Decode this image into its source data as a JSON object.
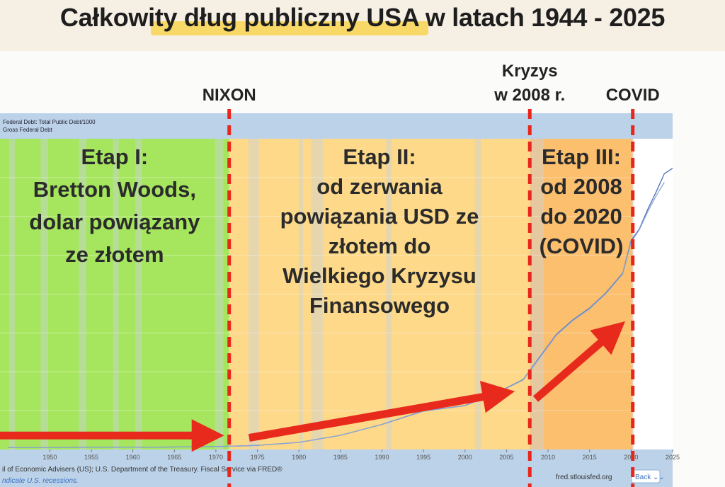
{
  "page": {
    "title": "Całkowity dług publiczny USA w latach 1944 - 2025"
  },
  "chart_data": {
    "type": "line",
    "series": [
      {
        "name": "Federal Debt: Total Public Debt/1000",
        "color": "#4a6fb8",
        "x": [
          1945,
          1950,
          1955,
          1960,
          1965,
          1970,
          1972,
          1975,
          1980,
          1985,
          1990,
          1995,
          2000,
          2004,
          2007,
          2009,
          2011,
          2013,
          2015,
          2017,
          2019,
          2020,
          2021,
          2022,
          2023,
          2024,
          2025
        ],
        "values": [
          0.26,
          0.26,
          0.28,
          0.29,
          0.32,
          0.38,
          0.43,
          0.53,
          0.91,
          1.82,
          3.23,
          4.97,
          5.66,
          7.38,
          9.0,
          11.9,
          14.8,
          16.7,
          18.2,
          20.2,
          22.7,
          26.9,
          28.4,
          30.9,
          33.1,
          35.5,
          36.2
        ]
      },
      {
        "name": "Gross Federal Debt",
        "color": "#8ea7d6",
        "x": [
          1945,
          1950,
          1955,
          1960,
          1965,
          1970,
          1972,
          1975,
          1980,
          1985,
          1990,
          1995,
          2000,
          2004,
          2007,
          2009,
          2011,
          2013,
          2015,
          2017,
          2019,
          2020,
          2021,
          2022,
          2023,
          2024
        ],
        "values": [
          0.26,
          0.26,
          0.27,
          0.29,
          0.32,
          0.38,
          0.43,
          0.54,
          0.91,
          1.82,
          3.21,
          4.92,
          5.63,
          7.35,
          8.95,
          11.8,
          14.7,
          16.6,
          18.1,
          20.1,
          22.6,
          26.7,
          28.3,
          30.6,
          32.6,
          34.4
        ]
      }
    ],
    "x_ticks": [
      "1950",
      "1955",
      "1960",
      "1965",
      "1970",
      "1975",
      "1980",
      "1985",
      "1990",
      "1995",
      "2000",
      "2005",
      "2010",
      "2015",
      "2020",
      "2025"
    ],
    "xlim": [
      1944,
      2025
    ],
    "ylim": [
      0,
      40
    ],
    "grid": true,
    "recession_periods": [
      [
        1945.1,
        1945.8
      ],
      [
        1948.9,
        1949.8
      ],
      [
        1953.5,
        1954.4
      ],
      [
        1957.6,
        1958.3
      ],
      [
        1960.3,
        1961.1
      ],
      [
        1969.9,
        1970.9
      ],
      [
        1973.9,
        1975.2
      ],
      [
        1980.0,
        1980.5
      ],
      [
        1981.5,
        1982.9
      ],
      [
        1990.5,
        1991.2
      ],
      [
        2001.2,
        2001.9
      ],
      [
        2007.9,
        2009.5
      ],
      [
        2020.1,
        2020.3
      ]
    ],
    "phases": [
      {
        "from": 1944,
        "to": 1971.6,
        "color": "#a6e65e",
        "lines": [
          "Etap I:",
          "Bretton Woods,",
          "dolar powiązany",
          "ze złotem"
        ]
      },
      {
        "from": 1971.6,
        "to": 2007.8,
        "color": "#fdd989",
        "lines": [
          "Etap II:",
          "od zerwania",
          "powiązania USD ze",
          "złotem do",
          "Wielkiego Kryzysu",
          "Finansowego"
        ]
      },
      {
        "from": 2007.8,
        "to": 2020.2,
        "color": "#fbbf6e",
        "lines": [
          "Etap III:",
          "od 2008",
          "do 2020",
          "(COVID)"
        ]
      }
    ],
    "markers": [
      {
        "x": 1971.6,
        "lines": [
          "NIXON"
        ]
      },
      {
        "x": 2007.8,
        "lines": [
          "Kryzys",
          "w 2008 r."
        ]
      },
      {
        "x": 2020.2,
        "lines": [
          "COVID"
        ]
      }
    ],
    "trend_arrows": [
      {
        "from": [
          1944,
          1.8
        ],
        "to": [
          1971.0,
          1.8
        ]
      },
      {
        "from": [
          1974.0,
          1.5
        ],
        "to": [
          2006.0,
          7.5
        ]
      },
      {
        "from": [
          2008.5,
          6.5
        ],
        "to": [
          2019.3,
          16.5
        ]
      }
    ],
    "source": "il of Economic Advisers (US); U.S. Department of the Treasury. Fiscal Service via FRED®",
    "recession_note": "ndicate U.S. recessions.",
    "site": "fred.stlouisfed.org",
    "back_label": "Back ⌄⌄"
  },
  "colors": {
    "marker": "#e8271c",
    "arrow": "#e82a1d",
    "legend_bar": "#bcd2e8",
    "axis_bar": "#bcd2e8"
  }
}
